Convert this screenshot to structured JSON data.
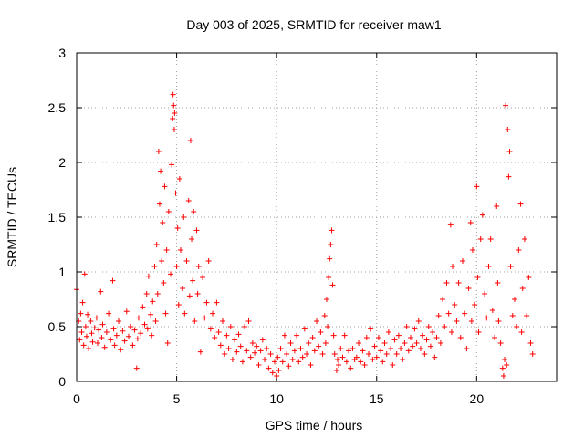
{
  "chart_data": {
    "type": "scatter",
    "title": "Day 003 of 2025, SRMTID for receiver maw1",
    "xlabel": "GPS time / hours",
    "ylabel": "SRMTID / TECUs",
    "xlim": [
      0,
      24
    ],
    "ylim": [
      0,
      3
    ],
    "xticks": [
      0,
      5,
      10,
      15,
      20
    ],
    "xtick_labels": [
      "0",
      "5",
      "10",
      "15",
      "20"
    ],
    "yticks": [
      0,
      0.5,
      1,
      1.5,
      2,
      2.5,
      3
    ],
    "ytick_labels": [
      "0",
      "0.5",
      "1",
      "1.5",
      "2",
      "2.5",
      "3"
    ],
    "grid": true,
    "marker": "+",
    "series": [
      {
        "name": "maw1",
        "color": "#ff0000",
        "points": [
          [
            0.0,
            0.84
          ],
          [
            0.1,
            0.55
          ],
          [
            0.15,
            0.38
          ],
          [
            0.2,
            0.62
          ],
          [
            0.25,
            0.45
          ],
          [
            0.3,
            0.72
          ],
          [
            0.35,
            0.33
          ],
          [
            0.4,
            0.98
          ],
          [
            0.45,
            0.5
          ],
          [
            0.5,
            0.41
          ],
          [
            0.55,
            0.61
          ],
          [
            0.6,
            0.3
          ],
          [
            0.7,
            0.55
          ],
          [
            0.75,
            0.44
          ],
          [
            0.8,
            0.36
          ],
          [
            0.9,
            0.49
          ],
          [
            1.0,
            0.58
          ],
          [
            1.05,
            0.35
          ],
          [
            1.1,
            0.47
          ],
          [
            1.2,
            0.82
          ],
          [
            1.25,
            0.4
          ],
          [
            1.3,
            0.52
          ],
          [
            1.4,
            0.31
          ],
          [
            1.5,
            0.45
          ],
          [
            1.6,
            0.62
          ],
          [
            1.7,
            0.38
          ],
          [
            1.8,
            0.92
          ],
          [
            1.85,
            0.48
          ],
          [
            1.9,
            0.33
          ],
          [
            2.0,
            0.42
          ],
          [
            2.1,
            0.55
          ],
          [
            2.2,
            0.29
          ],
          [
            2.3,
            0.46
          ],
          [
            2.4,
            0.37
          ],
          [
            2.5,
            0.64
          ],
          [
            2.6,
            0.41
          ],
          [
            2.7,
            0.5
          ],
          [
            2.8,
            0.33
          ],
          [
            2.9,
            0.47
          ],
          [
            3.0,
            0.12
          ],
          [
            3.05,
            0.39
          ],
          [
            3.1,
            0.58
          ],
          [
            3.2,
            0.44
          ],
          [
            3.3,
            0.68
          ],
          [
            3.4,
            0.52
          ],
          [
            3.5,
            0.8
          ],
          [
            3.55,
            0.48
          ],
          [
            3.6,
            0.96
          ],
          [
            3.7,
            0.61
          ],
          [
            3.75,
            0.42
          ],
          [
            3.8,
            0.73
          ],
          [
            3.9,
            1.05
          ],
          [
            3.95,
            0.55
          ],
          [
            4.0,
            1.25
          ],
          [
            4.05,
            0.8
          ],
          [
            4.1,
            2.1
          ],
          [
            4.15,
            1.62
          ],
          [
            4.2,
            1.92
          ],
          [
            4.25,
            1.1
          ],
          [
            4.3,
            1.45
          ],
          [
            4.35,
            0.9
          ],
          [
            4.4,
            1.78
          ],
          [
            4.45,
            0.62
          ],
          [
            4.5,
            1.2
          ],
          [
            4.55,
            0.35
          ],
          [
            4.6,
            1.55
          ],
          [
            4.7,
            0.98
          ],
          [
            4.75,
            1.98
          ],
          [
            4.8,
            2.4
          ],
          [
            4.82,
            2.62
          ],
          [
            4.85,
            2.52
          ],
          [
            4.88,
            2.3
          ],
          [
            4.9,
            2.45
          ],
          [
            4.95,
            1.72
          ],
          [
            5.0,
            1.05
          ],
          [
            5.05,
            1.4
          ],
          [
            5.1,
            0.7
          ],
          [
            5.15,
            1.85
          ],
          [
            5.2,
            1.2
          ],
          [
            5.3,
            0.85
          ],
          [
            5.35,
            1.5
          ],
          [
            5.4,
            0.62
          ],
          [
            5.5,
            1.1
          ],
          [
            5.6,
            1.65
          ],
          [
            5.65,
            0.78
          ],
          [
            5.7,
            2.2
          ],
          [
            5.75,
            1.3
          ],
          [
            5.8,
            0.92
          ],
          [
            5.85,
            1.55
          ],
          [
            5.9,
            0.55
          ],
          [
            6.0,
            1.38
          ],
          [
            6.05,
            0.8
          ],
          [
            6.1,
            1.05
          ],
          [
            6.2,
            0.27
          ],
          [
            6.3,
            0.95
          ],
          [
            6.4,
            0.58
          ],
          [
            6.5,
            0.72
          ],
          [
            6.6,
            1.1
          ],
          [
            6.7,
            0.48
          ],
          [
            6.8,
            0.62
          ],
          [
            6.9,
            0.4
          ],
          [
            7.0,
            0.72
          ],
          [
            7.1,
            0.45
          ],
          [
            7.2,
            0.33
          ],
          [
            7.3,
            0.55
          ],
          [
            7.4,
            0.25
          ],
          [
            7.5,
            0.42
          ],
          [
            7.6,
            0.3
          ],
          [
            7.7,
            0.5
          ],
          [
            7.8,
            0.2
          ],
          [
            7.9,
            0.38
          ],
          [
            8.0,
            0.27
          ],
          [
            8.1,
            0.43
          ],
          [
            8.2,
            0.32
          ],
          [
            8.3,
            0.18
          ],
          [
            8.4,
            0.5
          ],
          [
            8.5,
            0.28
          ],
          [
            8.6,
            0.55
          ],
          [
            8.7,
            0.22
          ],
          [
            8.8,
            0.35
          ],
          [
            8.9,
            0.26
          ],
          [
            9.0,
            0.32
          ],
          [
            9.1,
            0.15
          ],
          [
            9.2,
            0.28
          ],
          [
            9.3,
            0.38
          ],
          [
            9.4,
            0.2
          ],
          [
            9.5,
            0.3
          ],
          [
            9.6,
            0.12
          ],
          [
            9.7,
            0.25
          ],
          [
            9.8,
            0.08
          ],
          [
            9.9,
            0.18
          ],
          [
            10.0,
            0.05
          ],
          [
            10.05,
            0.22
          ],
          [
            10.1,
            0.1
          ],
          [
            10.2,
            0.3
          ],
          [
            10.3,
            0.18
          ],
          [
            10.4,
            0.42
          ],
          [
            10.5,
            0.25
          ],
          [
            10.6,
            0.14
          ],
          [
            10.7,
            0.35
          ],
          [
            10.8,
            0.2
          ],
          [
            10.9,
            0.28
          ],
          [
            11.0,
            0.42
          ],
          [
            11.1,
            0.18
          ],
          [
            11.2,
            0.3
          ],
          [
            11.3,
            0.22
          ],
          [
            11.4,
            0.48
          ],
          [
            11.5,
            0.25
          ],
          [
            11.6,
            0.35
          ],
          [
            11.7,
            0.15
          ],
          [
            11.8,
            0.4
          ],
          [
            11.9,
            0.28
          ],
          [
            12.0,
            0.55
          ],
          [
            12.1,
            0.32
          ],
          [
            12.2,
            0.45
          ],
          [
            12.3,
            0.25
          ],
          [
            12.4,
            0.6
          ],
          [
            12.45,
            0.35
          ],
          [
            12.5,
            0.75
          ],
          [
            12.55,
            0.5
          ],
          [
            12.6,
            0.95
          ],
          [
            12.65,
            1.12
          ],
          [
            12.7,
            1.25
          ],
          [
            12.75,
            1.38
          ],
          [
            12.8,
            0.88
          ],
          [
            12.85,
            0.42
          ],
          [
            12.9,
            0.25
          ],
          [
            13.0,
            0.1
          ],
          [
            13.05,
            0.2
          ],
          [
            13.1,
            0.15
          ],
          [
            13.2,
            0.3
          ],
          [
            13.3,
            0.22
          ],
          [
            13.4,
            0.42
          ],
          [
            13.5,
            0.18
          ],
          [
            13.6,
            0.28
          ],
          [
            13.7,
            0.12
          ],
          [
            13.8,
            0.3
          ],
          [
            13.9,
            0.2
          ],
          [
            14.0,
            0.22
          ],
          [
            14.1,
            0.35
          ],
          [
            14.2,
            0.18
          ],
          [
            14.3,
            0.28
          ],
          [
            14.4,
            0.15
          ],
          [
            14.5,
            0.4
          ],
          [
            14.6,
            0.25
          ],
          [
            14.7,
            0.48
          ],
          [
            14.8,
            0.2
          ],
          [
            14.9,
            0.32
          ],
          [
            15.0,
            0.22
          ],
          [
            15.1,
            0.4
          ],
          [
            15.2,
            0.28
          ],
          [
            15.3,
            0.18
          ],
          [
            15.4,
            0.35
          ],
          [
            15.5,
            0.25
          ],
          [
            15.6,
            0.45
          ],
          [
            15.7,
            0.3
          ],
          [
            15.8,
            0.15
          ],
          [
            15.9,
            0.38
          ],
          [
            16.0,
            0.25
          ],
          [
            16.1,
            0.42
          ],
          [
            16.2,
            0.3
          ],
          [
            16.3,
            0.2
          ],
          [
            16.4,
            0.35
          ],
          [
            16.5,
            0.5
          ],
          [
            16.6,
            0.28
          ],
          [
            16.7,
            0.4
          ],
          [
            16.8,
            0.32
          ],
          [
            16.9,
            0.48
          ],
          [
            17.0,
            0.35
          ],
          [
            17.1,
            0.55
          ],
          [
            17.2,
            0.3
          ],
          [
            17.3,
            0.42
          ],
          [
            17.4,
            0.25
          ],
          [
            17.5,
            0.38
          ],
          [
            17.6,
            0.5
          ],
          [
            17.7,
            0.32
          ],
          [
            17.8,
            0.45
          ],
          [
            17.9,
            0.22
          ],
          [
            18.0,
            0.4
          ],
          [
            18.1,
            0.6
          ],
          [
            18.2,
            0.35
          ],
          [
            18.3,
            0.75
          ],
          [
            18.4,
            0.5
          ],
          [
            18.5,
            0.9
          ],
          [
            18.6,
            0.62
          ],
          [
            18.7,
            1.43
          ],
          [
            18.75,
            0.45
          ],
          [
            18.8,
            1.05
          ],
          [
            18.9,
            0.7
          ],
          [
            19.0,
            0.55
          ],
          [
            19.1,
            0.9
          ],
          [
            19.2,
            0.4
          ],
          [
            19.3,
            1.1
          ],
          [
            19.4,
            0.62
          ],
          [
            19.5,
            0.3
          ],
          [
            19.6,
            0.85
          ],
          [
            19.7,
            1.45
          ],
          [
            19.75,
            0.55
          ],
          [
            19.8,
            1.2
          ],
          [
            19.9,
            0.7
          ],
          [
            20.0,
            1.78
          ],
          [
            20.05,
            0.95
          ],
          [
            20.1,
            0.45
          ],
          [
            20.2,
            1.3
          ],
          [
            20.3,
            1.52
          ],
          [
            20.4,
            0.8
          ],
          [
            20.5,
            0.58
          ],
          [
            20.6,
            1.05
          ],
          [
            20.7,
            1.3
          ],
          [
            20.8,
            0.65
          ],
          [
            20.9,
            0.4
          ],
          [
            21.0,
            1.6
          ],
          [
            21.05,
            0.9
          ],
          [
            21.1,
            0.55
          ],
          [
            21.2,
            0.35
          ],
          [
            21.3,
            0.12
          ],
          [
            21.35,
            0.05
          ],
          [
            21.4,
            0.2
          ],
          [
            21.45,
            2.52
          ],
          [
            21.5,
            0.15
          ],
          [
            21.55,
            2.3
          ],
          [
            21.6,
            1.87
          ],
          [
            21.65,
            2.1
          ],
          [
            21.7,
            1.05
          ],
          [
            21.8,
            0.6
          ],
          [
            21.9,
            0.75
          ],
          [
            22.0,
            0.5
          ],
          [
            22.1,
            1.2
          ],
          [
            22.2,
            1.62
          ],
          [
            22.25,
            0.45
          ],
          [
            22.3,
            0.85
          ],
          [
            22.4,
            1.3
          ],
          [
            22.5,
            0.6
          ],
          [
            22.6,
            0.95
          ],
          [
            22.7,
            0.35
          ],
          [
            22.8,
            0.25
          ]
        ]
      }
    ]
  }
}
